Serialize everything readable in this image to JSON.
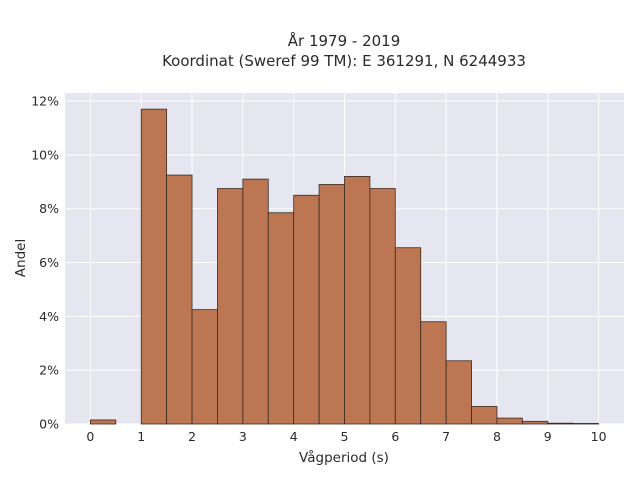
{
  "chart_data": {
    "type": "bar",
    "title_line1": "År 1979 - 2019",
    "title_line2": "Koordinat (Sweref 99 TM): E 361291, N 6244933",
    "xlabel": "Vågperiod (s)",
    "ylabel": "Andel",
    "xlim": [
      -0.5,
      10.5
    ],
    "ylim": [
      0,
      12.3
    ],
    "x_ticks": [
      0,
      1,
      2,
      3,
      4,
      5,
      6,
      7,
      8,
      9,
      10
    ],
    "y_ticks": [
      0,
      2,
      4,
      6,
      8,
      10,
      12
    ],
    "y_tick_labels": [
      "0%",
      "2%",
      "4%",
      "6%",
      "8%",
      "10%",
      "12%"
    ],
    "bin_width": 0.5,
    "bins": [
      {
        "start": 0.0,
        "value": 0.15
      },
      {
        "start": 0.5,
        "value": 0.0
      },
      {
        "start": 1.0,
        "value": 11.7
      },
      {
        "start": 1.5,
        "value": 9.25
      },
      {
        "start": 2.0,
        "value": 4.25
      },
      {
        "start": 2.5,
        "value": 8.75
      },
      {
        "start": 3.0,
        "value": 9.1
      },
      {
        "start": 3.5,
        "value": 7.85
      },
      {
        "start": 4.0,
        "value": 8.5
      },
      {
        "start": 4.5,
        "value": 8.9
      },
      {
        "start": 5.0,
        "value": 9.2
      },
      {
        "start": 5.5,
        "value": 8.75
      },
      {
        "start": 6.0,
        "value": 6.55
      },
      {
        "start": 6.5,
        "value": 3.8
      },
      {
        "start": 7.0,
        "value": 2.35
      },
      {
        "start": 7.5,
        "value": 0.65
      },
      {
        "start": 8.0,
        "value": 0.22
      },
      {
        "start": 8.5,
        "value": 0.1
      },
      {
        "start": 9.0,
        "value": 0.03
      },
      {
        "start": 9.5,
        "value": 0.02
      }
    ],
    "grid": true,
    "colors": {
      "bar": "#bc7652",
      "bar_edge": "#3a2a20",
      "plot_bg": "#e6e6f0",
      "grid": "#ffffff"
    }
  }
}
